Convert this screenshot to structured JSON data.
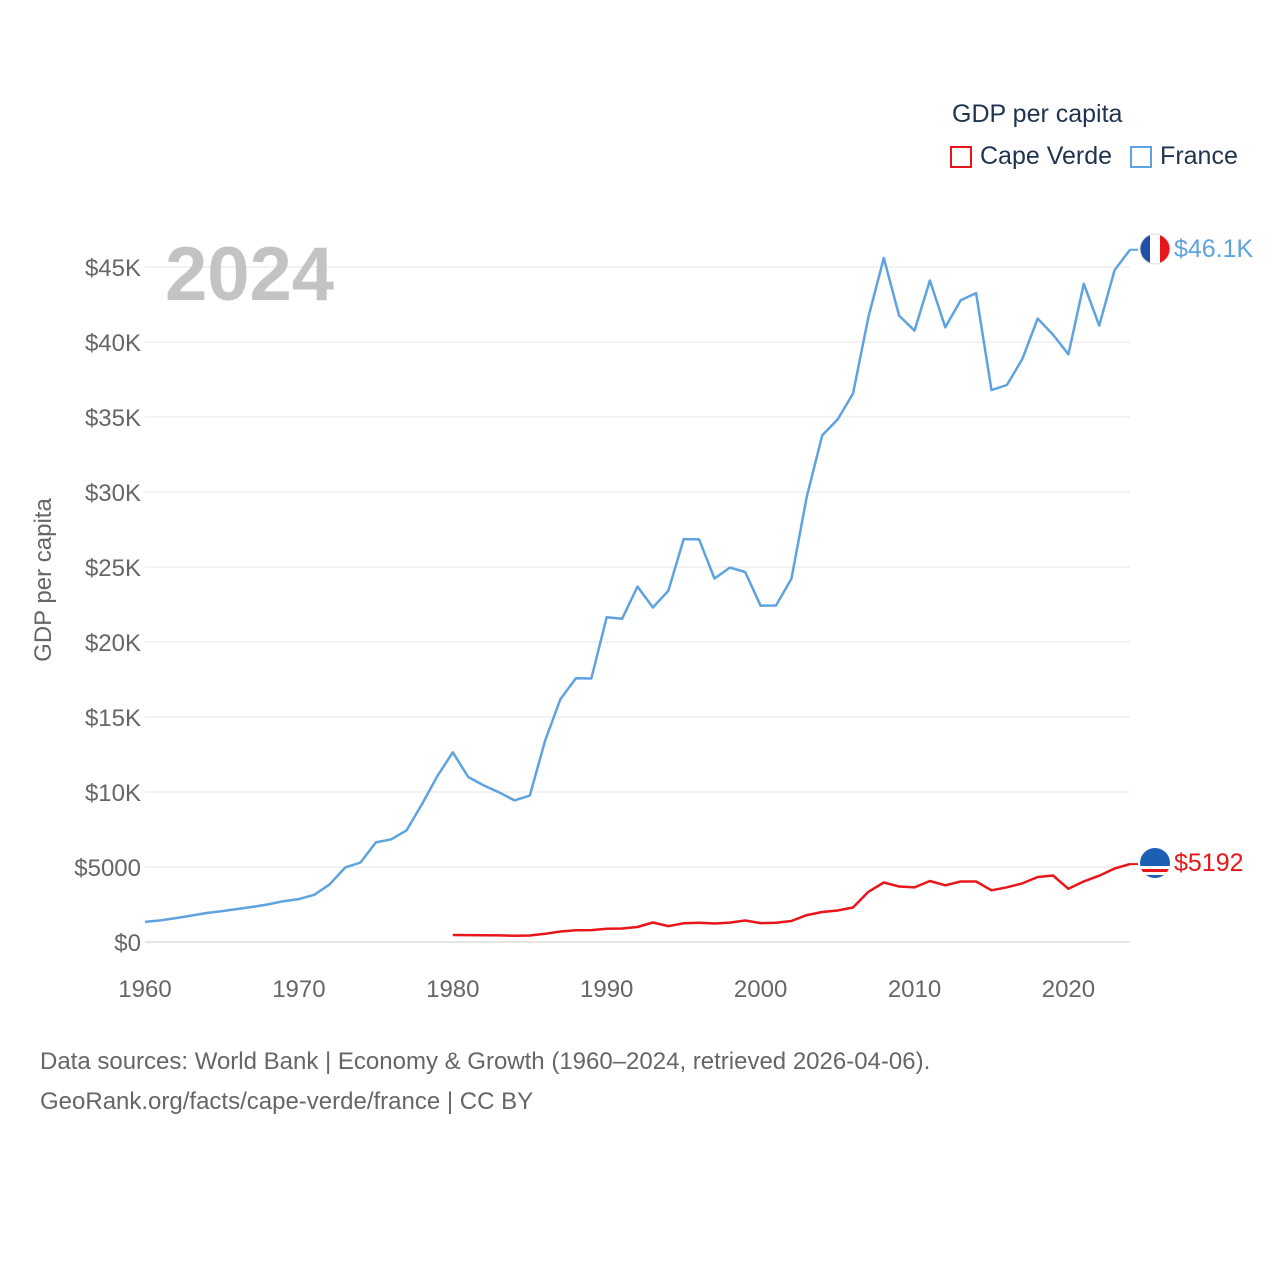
{
  "chart_data": {
    "type": "line",
    "year_label": "2024",
    "ylabel": "GDP per capita",
    "xlim": [
      1960,
      2024
    ],
    "ylim": [
      0,
      45000
    ],
    "x_ticks": [
      {
        "value": 1960,
        "label": "1960"
      },
      {
        "value": 1970,
        "label": "1970"
      },
      {
        "value": 1980,
        "label": "1980"
      },
      {
        "value": 1990,
        "label": "1990"
      },
      {
        "value": 2000,
        "label": "2000"
      },
      {
        "value": 2010,
        "label": "2010"
      },
      {
        "value": 2020,
        "label": "2020"
      }
    ],
    "y_ticks": [
      {
        "value": 0,
        "label": "$0"
      },
      {
        "value": 5000,
        "label": "$5000"
      },
      {
        "value": 10000,
        "label": "$10K"
      },
      {
        "value": 15000,
        "label": "$15K"
      },
      {
        "value": 20000,
        "label": "$20K"
      },
      {
        "value": 25000,
        "label": "$25K"
      },
      {
        "value": 30000,
        "label": "$30K"
      },
      {
        "value": 35000,
        "label": "$35K"
      },
      {
        "value": 40000,
        "label": "$40K"
      },
      {
        "value": 45000,
        "label": "$45K"
      }
    ],
    "series": [
      {
        "name": "France",
        "color": "#5ea3e0",
        "end_label": "$46.1K",
        "flag": "france-flag-icon",
        "x": [
          1960,
          1961,
          1962,
          1963,
          1964,
          1965,
          1966,
          1967,
          1968,
          1969,
          1970,
          1971,
          1972,
          1973,
          1974,
          1975,
          1976,
          1977,
          1978,
          1979,
          1980,
          1981,
          1982,
          1983,
          1984,
          1985,
          1986,
          1987,
          1988,
          1989,
          1990,
          1991,
          1992,
          1993,
          1994,
          1995,
          1996,
          1997,
          1998,
          1999,
          2000,
          2001,
          2002,
          2003,
          2004,
          2005,
          2006,
          2007,
          2008,
          2009,
          2010,
          2011,
          2012,
          2013,
          2014,
          2015,
          2016,
          2017,
          2018,
          2019,
          2020,
          2021,
          2022,
          2023,
          2024
        ],
        "values": [
          1340,
          1440,
          1590,
          1760,
          1930,
          2060,
          2200,
          2340,
          2510,
          2720,
          2860,
          3150,
          3850,
          4960,
          5300,
          6640,
          6850,
          7450,
          9190,
          11070,
          12650,
          11000,
          10440,
          9980,
          9440,
          9760,
          13450,
          16200,
          17580,
          17570,
          21650,
          21550,
          23690,
          22300,
          23410,
          26860,
          26840,
          24230,
          24960,
          24670,
          22420,
          22430,
          24210,
          29690,
          33770,
          34830,
          36560,
          41660,
          45600,
          41760,
          40760,
          44100,
          40980,
          42780,
          43260,
          36790,
          37130,
          38860,
          41560,
          40490,
          39180,
          43880,
          41090,
          44790,
          46150
        ]
      },
      {
        "name": "Cape Verde",
        "color": "#e8161b",
        "end_label": "$5192",
        "flag": "cape-verde-flag-icon",
        "x": [
          1980,
          1981,
          1982,
          1983,
          1984,
          1985,
          1986,
          1987,
          1988,
          1989,
          1990,
          1991,
          1992,
          1993,
          1994,
          1995,
          1996,
          1997,
          1998,
          1999,
          2000,
          2001,
          2002,
          2003,
          2004,
          2005,
          2006,
          2007,
          2008,
          2009,
          2010,
          2011,
          2012,
          2013,
          2014,
          2015,
          2016,
          2017,
          2018,
          2019,
          2020,
          2021,
          2022,
          2023,
          2024
        ],
        "values": [
          470,
          460,
          450,
          440,
          420,
          430,
          550,
          700,
          780,
          790,
          880,
          900,
          1000,
          1300,
          1060,
          1250,
          1280,
          1230,
          1290,
          1430,
          1260,
          1280,
          1400,
          1790,
          2000,
          2100,
          2300,
          3350,
          3970,
          3700,
          3640,
          4070,
          3780,
          4030,
          4030,
          3450,
          3650,
          3910,
          4330,
          4430,
          3550,
          4040,
          4420,
          4900,
          5192
        ]
      }
    ]
  },
  "legend": {
    "title": "GDP per capita",
    "items": [
      {
        "name": "Cape Verde",
        "color": "#e8161b"
      },
      {
        "name": "France",
        "color": "#5ea3e0"
      }
    ]
  },
  "footer": {
    "line1": "Data sources: World Bank | Economy & Growth (1960–2024, retrieved 2026-04-06).",
    "line2": "GeoRank.org/facts/cape-verde/france | CC BY"
  }
}
